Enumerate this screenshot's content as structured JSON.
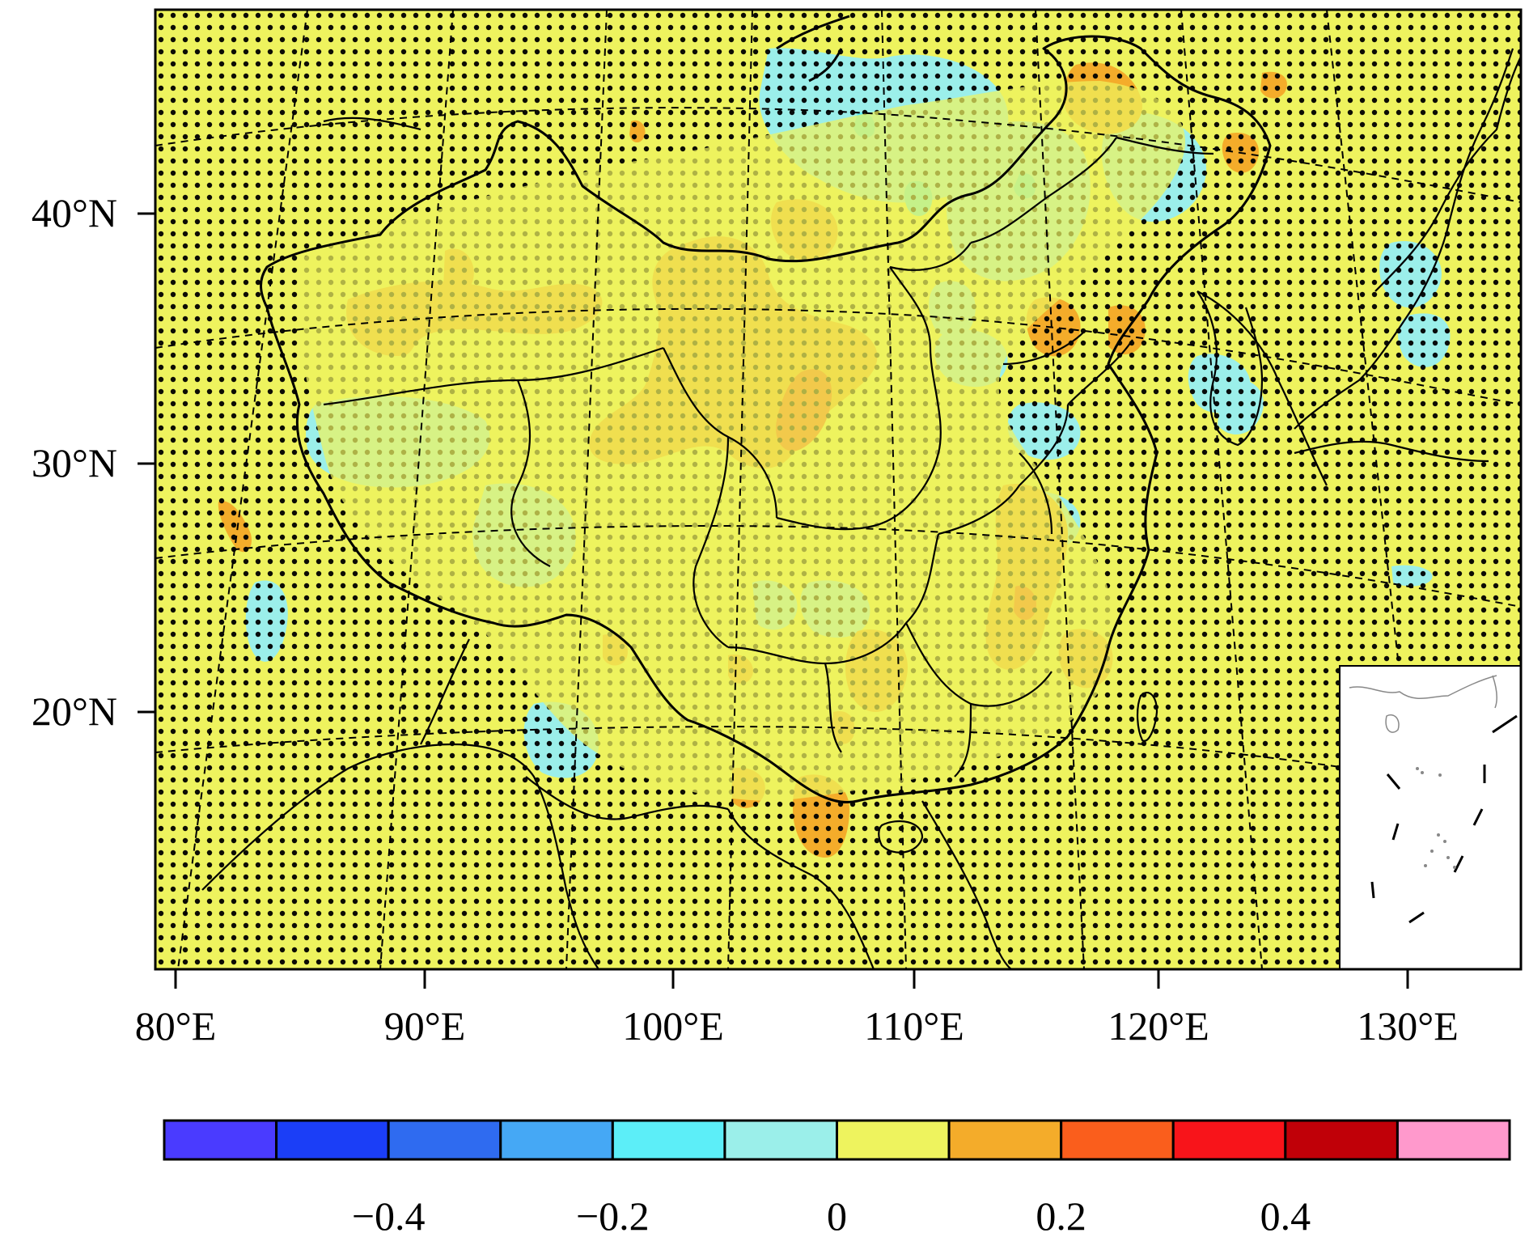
{
  "map": {
    "lat_labels": [
      "40°N",
      "30°N",
      "20°N"
    ],
    "lon_labels": [
      "80°E",
      "90°E",
      "100°E",
      "110°E",
      "120°E",
      "130°E"
    ],
    "background_color": "#EEF35E",
    "stipple_color": "#000000",
    "inset": "South China Sea islands inset"
  },
  "colorbar": {
    "colors": [
      "#4A3BFF",
      "#1B3EF7",
      "#2F6BF0",
      "#45A8F5",
      "#5CEEF8",
      "#9BEFEA",
      "#EEF35E",
      "#F4AC2A",
      "#FA5E1C",
      "#F8141A",
      "#C00008",
      "#FF99CC"
    ],
    "tick_labels": [
      "−0.4",
      "−0.2",
      "0",
      "0.2",
      "0.4"
    ],
    "tick_values": [
      -0.4,
      -0.2,
      0,
      0.2,
      0.4
    ],
    "min": -0.6,
    "max": 0.6
  },
  "anomaly_colors": {
    "negative": "#9BEFEA",
    "negative_strong": "#5CEEF8",
    "positive": "#F4AC2A",
    "positive_strong": "#FA5E1C"
  }
}
